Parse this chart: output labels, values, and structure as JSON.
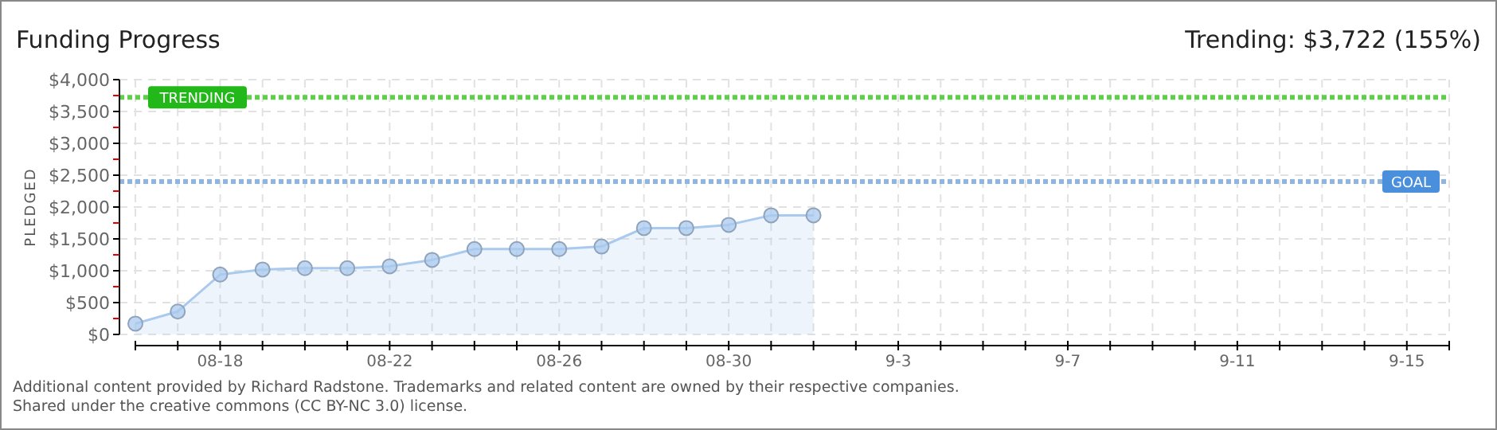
{
  "chart_data": {
    "type": "area",
    "title": "Funding Progress",
    "subtitle": "Trending: $3,722 (155%)",
    "ylabel": "PLEDGED",
    "x": [
      "--08-16",
      "--08-17",
      "--08-18",
      "--08-19",
      "--08-20",
      "--08-21",
      "--08-22",
      "--08-23",
      "--08-24",
      "--08-25",
      "--08-26",
      "--08-27",
      "--08-28",
      "--08-29",
      "--08-30",
      "--08-31",
      "--09-01"
    ],
    "series": [
      {
        "color": "#a9c9ee",
        "values": [
          170,
          360,
          940,
          1020,
          1040,
          1040,
          1070,
          1170,
          1340,
          1340,
          1340,
          1380,
          1670,
          1670,
          1720,
          1870,
          1870
        ]
      }
    ],
    "xlim": [
      "--08-16",
      "--09-16"
    ],
    "xticks": [
      {
        "value": "--08-16",
        "label": null
      },
      {
        "value": "--08-17",
        "label": null
      },
      {
        "value": "--08-18",
        "label": "08-18"
      },
      {
        "value": "--08-19",
        "label": null
      },
      {
        "value": "--08-20",
        "label": null
      },
      {
        "value": "--08-21",
        "label": null
      },
      {
        "value": "--08-22",
        "label": "08-22"
      },
      {
        "value": "--08-23",
        "label": null
      },
      {
        "value": "--08-24",
        "label": null
      },
      {
        "value": "--08-25",
        "label": null
      },
      {
        "value": "--08-26",
        "label": "08-26"
      },
      {
        "value": "--08-27",
        "label": null
      },
      {
        "value": "--08-28",
        "label": null
      },
      {
        "value": "--08-29",
        "label": null
      },
      {
        "value": "--08-30",
        "label": "08-30"
      },
      {
        "value": "--08-31",
        "label": null
      },
      {
        "value": "--09-01",
        "label": null
      },
      {
        "value": "--09-02",
        "label": null
      },
      {
        "value": "--09-03",
        "label": "9-3"
      },
      {
        "value": "--09-04",
        "label": null
      },
      {
        "value": "--09-05",
        "label": null
      },
      {
        "value": "--09-06",
        "label": null
      },
      {
        "value": "--09-07",
        "label": "9-7"
      },
      {
        "value": "--09-08",
        "label": null
      },
      {
        "value": "--09-09",
        "label": null
      },
      {
        "value": "--09-10",
        "label": null
      },
      {
        "value": "--09-11",
        "label": "9-11"
      },
      {
        "value": "--09-12",
        "label": null
      },
      {
        "value": "--09-13",
        "label": null
      },
      {
        "value": "--09-14",
        "label": null
      },
      {
        "value": "--09-15",
        "label": "9-15"
      },
      {
        "value": "--09-16",
        "label": null
      }
    ],
    "ylim": [
      0,
      4000
    ],
    "yticks": [
      {
        "value": 0,
        "label": "$0"
      },
      {
        "value": 250,
        "label": null
      },
      {
        "value": 500,
        "label": "$500"
      },
      {
        "value": 750,
        "label": null
      },
      {
        "value": 1000,
        "label": "$1,000"
      },
      {
        "value": 1250,
        "label": null
      },
      {
        "value": 1500,
        "label": "$1,500"
      },
      {
        "value": 1750,
        "label": null
      },
      {
        "value": 2000,
        "label": "$2,000"
      },
      {
        "value": 2250,
        "label": null
      },
      {
        "value": 2500,
        "label": "$2,500"
      },
      {
        "value": 2750,
        "label": null
      },
      {
        "value": 3000,
        "label": "$3,000"
      },
      {
        "value": 3250,
        "label": null
      },
      {
        "value": 3500,
        "label": "$3,500"
      },
      {
        "value": 3750,
        "label": null
      },
      {
        "value": 4000,
        "label": "$4,000"
      }
    ],
    "ref_lines": [
      {
        "axis": "y",
        "value": 3722,
        "label": "TRENDING",
        "color": "#5fcf4a",
        "line_style": "dotted"
      },
      {
        "axis": "y",
        "value": 2400,
        "label": "GOAL",
        "color": "#8fb6e3",
        "line_style": "dotted"
      }
    ],
    "grid": true,
    "marker": "circle",
    "annotations": [
      "Additional content provided by Richard Radstone. Trademarks and related content are owned by their respective companies.",
      "Shared under the creative commons (CC BY-NC 3.0) license."
    ]
  }
}
